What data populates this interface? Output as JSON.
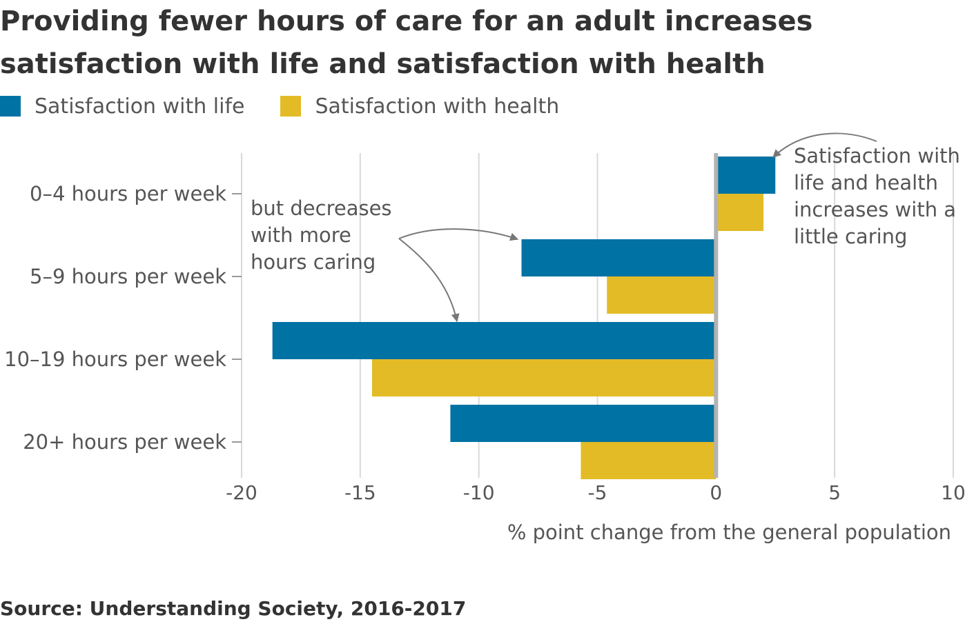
{
  "title": "Providing fewer hours of care for an adult increases satisfaction with life and satisfaction with health",
  "source": "Source: Understanding Society, 2016-2017",
  "colors": {
    "life": "#0072a3",
    "health": "#e3bb26",
    "grid": "#d9d9d9",
    "zero": "#b3b3b3",
    "text": "#555555",
    "arrow": "#777777"
  },
  "chart_data": {
    "type": "bar",
    "orientation": "horizontal",
    "categories": [
      "0–4 hours per week",
      "5–9 hours per week",
      "10–19 hours per week",
      "20+ hours per week"
    ],
    "series": [
      {
        "name": "Satisfaction with life",
        "values": [
          2.5,
          -8.2,
          -18.7,
          -11.2
        ]
      },
      {
        "name": "Satisfaction with health",
        "values": [
          2.0,
          -4.6,
          -14.5,
          -5.7
        ]
      }
    ],
    "xlabel": "% point change from the general population",
    "xlim": [
      -20,
      10
    ],
    "xticks": [
      -20,
      -15,
      -10,
      -5,
      0,
      5,
      10
    ],
    "grid": true,
    "legend_position": "top-left",
    "annotations": [
      {
        "lines": [
          "Satisfaction with",
          "life and health",
          "increases with a",
          "little caring"
        ]
      },
      {
        "lines": [
          "but decreases",
          "with more",
          "hours caring"
        ]
      }
    ]
  }
}
